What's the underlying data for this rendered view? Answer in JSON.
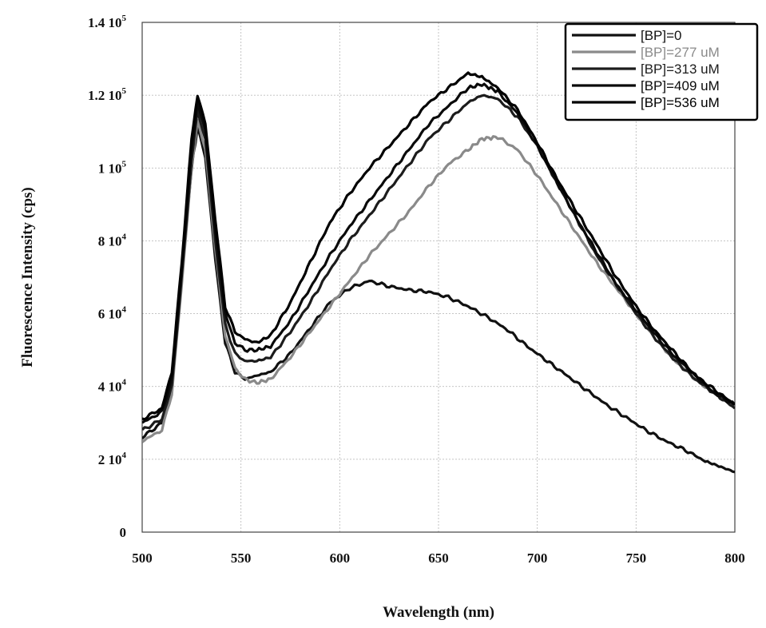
{
  "chart_data": {
    "type": "line",
    "xlabel": "Wavelength (nm)",
    "ylabel": "Fluorescence Intensity (cps)",
    "xlim": [
      500,
      800
    ],
    "ylim": [
      0,
      140000
    ],
    "x_ticks": [
      500,
      550,
      600,
      650,
      700,
      750,
      800
    ],
    "x_tick_labels": [
      "500",
      "550",
      "600",
      "650",
      "700",
      "750",
      "800"
    ],
    "y_ticks": [
      0,
      20000,
      40000,
      60000,
      80000,
      100000,
      120000,
      140000
    ],
    "y_tick_labels": [
      {
        "mant": "0",
        "exp": ""
      },
      {
        "mant": "2 10",
        "exp": "4"
      },
      {
        "mant": "4 10",
        "exp": "4"
      },
      {
        "mant": "6 10",
        "exp": "4"
      },
      {
        "mant": "8 10",
        "exp": "4"
      },
      {
        "mant": "1 10",
        "exp": "5"
      },
      {
        "mant": "1.2 10",
        "exp": "5"
      },
      {
        "mant": "1.4 10",
        "exp": "5"
      }
    ],
    "grid": true,
    "legend_position": "top-right",
    "series": [
      {
        "name": "[BP]=0",
        "color": "#111111",
        "x": [
          500,
          510,
          515,
          520,
          525,
          528,
          532,
          537,
          542,
          547,
          552,
          558,
          565,
          575,
          585,
          595,
          605,
          615,
          625,
          635,
          645,
          655,
          665,
          675,
          685,
          695,
          705,
          715,
          725,
          735,
          745,
          755,
          765,
          775,
          785,
          800
        ],
        "y": [
          26000,
          30000,
          40000,
          70000,
          100000,
          111000,
          103000,
          75000,
          52000,
          44000,
          42000,
          43000,
          44000,
          49000,
          56000,
          63000,
          67000,
          69000,
          67500,
          66500,
          66000,
          64500,
          62000,
          59000,
          55500,
          51000,
          47000,
          43000,
          39000,
          35000,
          31500,
          28000,
          25000,
          22500,
          19500,
          16500
        ]
      },
      {
        "name": "[BP]=277 uM",
        "color": "#8a8a8a",
        "x": [
          500,
          510,
          515,
          520,
          525,
          528,
          532,
          537,
          542,
          547,
          552,
          558,
          565,
          575,
          585,
          595,
          605,
          615,
          625,
          635,
          645,
          655,
          665,
          672,
          680,
          690,
          700,
          710,
          720,
          730,
          740,
          750,
          760,
          770,
          780,
          790,
          800
        ],
        "y": [
          25000,
          28000,
          38000,
          68000,
          100000,
          113000,
          105000,
          78000,
          54000,
          45000,
          42000,
          41000,
          42000,
          48000,
          55000,
          62000,
          69000,
          76000,
          82000,
          88000,
          95000,
          101000,
          105000,
          108000,
          108500,
          105000,
          98000,
          90000,
          82000,
          74000,
          67000,
          60000,
          53000,
          47000,
          42000,
          38000,
          35000
        ]
      },
      {
        "name": "[BP]=313 uM",
        "color": "#1c1c1c",
        "x": [
          500,
          510,
          515,
          520,
          525,
          528,
          532,
          537,
          542,
          547,
          552,
          558,
          565,
          575,
          585,
          595,
          605,
          615,
          625,
          635,
          645,
          655,
          665,
          672,
          680,
          690,
          700,
          710,
          720,
          730,
          740,
          750,
          760,
          770,
          780,
          790,
          800
        ],
        "y": [
          28000,
          31000,
          40000,
          70000,
          102000,
          116000,
          108000,
          80000,
          57000,
          49000,
          47000,
          47000,
          48000,
          55000,
          63000,
          72000,
          80000,
          87000,
          94000,
          101000,
          108000,
          113000,
          118000,
          120000,
          119000,
          114000,
          106000,
          96000,
          86000,
          76000,
          68000,
          60000,
          53000,
          47000,
          42000,
          38000,
          34000
        ]
      },
      {
        "name": "[BP]=409 uM",
        "color": "#0a0a0a",
        "x": [
          500,
          510,
          515,
          520,
          525,
          528,
          532,
          537,
          542,
          547,
          552,
          558,
          565,
          575,
          585,
          595,
          605,
          615,
          625,
          635,
          645,
          655,
          665,
          672,
          680,
          690,
          700,
          710,
          720,
          730,
          740,
          750,
          760,
          770,
          780,
          790,
          800
        ],
        "y": [
          30000,
          33000,
          42000,
          72000,
          105000,
          118000,
          110000,
          83000,
          60000,
          52000,
          50000,
          50000,
          51000,
          58000,
          67000,
          76000,
          84000,
          91000,
          98000,
          105000,
          112000,
          117000,
          122000,
          123000,
          121000,
          115000,
          106000,
          96000,
          86000,
          77000,
          68000,
          61000,
          54000,
          48000,
          43000,
          38000,
          35000
        ]
      },
      {
        "name": "[BP]=536 uM",
        "color": "#000000",
        "x": [
          500,
          510,
          515,
          520,
          525,
          528,
          532,
          537,
          542,
          547,
          552,
          558,
          565,
          575,
          585,
          595,
          605,
          615,
          625,
          635,
          645,
          655,
          665,
          672,
          680,
          690,
          700,
          710,
          720,
          730,
          740,
          750,
          760,
          770,
          780,
          790,
          800
        ],
        "y": [
          31000,
          34000,
          44000,
          74000,
          108000,
          120000,
          112000,
          86000,
          62000,
          55000,
          53000,
          52000,
          54000,
          63000,
          74000,
          85000,
          93000,
          100000,
          106000,
          112000,
          118000,
          122000,
          126000,
          125000,
          122000,
          116000,
          107000,
          97000,
          88000,
          79000,
          70000,
          62000,
          55000,
          49000,
          43000,
          39000,
          35000
        ]
      }
    ]
  }
}
